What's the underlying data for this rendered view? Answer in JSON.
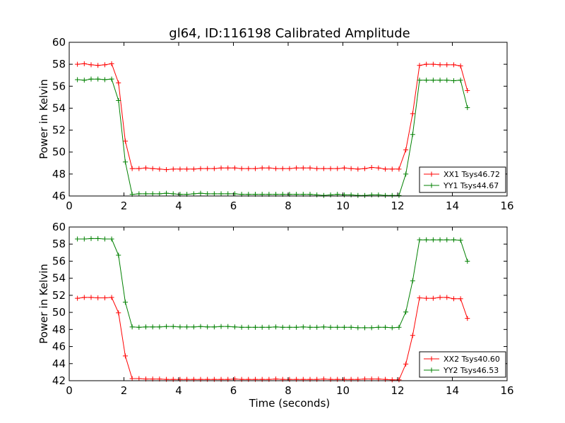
{
  "chart_data": [
    {
      "type": "line",
      "title": "gl64, ID:116198 Calibrated Amplitude",
      "xlabel": "",
      "ylabel": "Power in Kelvin",
      "xlim": [
        0,
        16
      ],
      "ylim": [
        46,
        60
      ],
      "xticks": [
        0,
        2,
        4,
        6,
        8,
        10,
        12,
        14,
        16
      ],
      "yticks": [
        46,
        48,
        50,
        52,
        54,
        56,
        58,
        60
      ],
      "grid": false,
      "legend_position": "lower-right",
      "x": [
        0.3,
        0.55,
        0.8,
        1.05,
        1.3,
        1.55,
        1.8,
        2.05,
        2.3,
        2.55,
        2.8,
        3.05,
        3.3,
        3.55,
        3.8,
        4.05,
        4.3,
        4.55,
        4.8,
        5.05,
        5.3,
        5.55,
        5.8,
        6.05,
        6.3,
        6.55,
        6.8,
        7.05,
        7.3,
        7.55,
        7.8,
        8.05,
        8.3,
        8.55,
        8.8,
        9.05,
        9.3,
        9.55,
        9.8,
        10.05,
        10.3,
        10.55,
        10.8,
        11.05,
        11.3,
        11.55,
        11.8,
        12.05,
        12.3,
        12.55,
        12.8,
        13.05,
        13.3,
        13.55,
        13.8,
        14.05,
        14.3,
        14.55
      ],
      "series": [
        {
          "name": "XX1 Tsys46.72",
          "color": "#ff0000",
          "values": [
            58.0,
            58.05,
            57.95,
            57.9,
            57.95,
            58.05,
            56.3,
            51.0,
            48.5,
            48.5,
            48.55,
            48.5,
            48.45,
            48.4,
            48.45,
            48.45,
            48.45,
            48.45,
            48.5,
            48.5,
            48.5,
            48.55,
            48.55,
            48.55,
            48.5,
            48.5,
            48.5,
            48.55,
            48.55,
            48.5,
            48.5,
            48.5,
            48.55,
            48.55,
            48.55,
            48.5,
            48.5,
            48.5,
            48.5,
            48.55,
            48.5,
            48.45,
            48.5,
            48.6,
            48.55,
            48.45,
            48.45,
            48.45,
            50.2,
            53.5,
            57.9,
            58.0,
            58.0,
            57.95,
            57.95,
            57.95,
            57.85,
            55.6
          ]
        },
        {
          "name": "YY1 Tsys44.67",
          "color": "#008000",
          "values": [
            56.6,
            56.55,
            56.65,
            56.65,
            56.6,
            56.65,
            54.7,
            49.1,
            46.15,
            46.2,
            46.2,
            46.2,
            46.2,
            46.25,
            46.2,
            46.15,
            46.15,
            46.2,
            46.25,
            46.2,
            46.2,
            46.2,
            46.2,
            46.2,
            46.15,
            46.15,
            46.15,
            46.15,
            46.15,
            46.15,
            46.15,
            46.15,
            46.15,
            46.15,
            46.15,
            46.1,
            46.05,
            46.1,
            46.15,
            46.1,
            46.1,
            46.05,
            46.05,
            46.1,
            46.1,
            46.05,
            46.05,
            46.05,
            48.0,
            51.6,
            56.55,
            56.55,
            56.55,
            56.55,
            56.55,
            56.5,
            56.55,
            54.05
          ]
        }
      ]
    },
    {
      "type": "line",
      "title": "",
      "xlabel": "Time (seconds)",
      "ylabel": "Power in Kelvin",
      "xlim": [
        0,
        16
      ],
      "ylim": [
        42,
        60
      ],
      "xticks": [
        0,
        2,
        4,
        6,
        8,
        10,
        12,
        14,
        16
      ],
      "yticks": [
        42,
        44,
        46,
        48,
        50,
        52,
        54,
        56,
        58,
        60
      ],
      "grid": false,
      "legend_position": "lower-right",
      "x": [
        0.3,
        0.55,
        0.8,
        1.05,
        1.3,
        1.55,
        1.8,
        2.05,
        2.3,
        2.55,
        2.8,
        3.05,
        3.3,
        3.55,
        3.8,
        4.05,
        4.3,
        4.55,
        4.8,
        5.05,
        5.3,
        5.55,
        5.8,
        6.05,
        6.3,
        6.55,
        6.8,
        7.05,
        7.3,
        7.55,
        7.8,
        8.05,
        8.3,
        8.55,
        8.8,
        9.05,
        9.3,
        9.55,
        9.8,
        10.05,
        10.3,
        10.55,
        10.8,
        11.05,
        11.3,
        11.55,
        11.8,
        12.05,
        12.3,
        12.55,
        12.8,
        13.05,
        13.3,
        13.55,
        13.8,
        14.05,
        14.3,
        14.55
      ],
      "series": [
        {
          "name": "XX2 Tsys40.60",
          "color": "#ff0000",
          "values": [
            51.65,
            51.75,
            51.75,
            51.7,
            51.7,
            51.75,
            49.95,
            44.9,
            42.25,
            42.25,
            42.2,
            42.2,
            42.2,
            42.15,
            42.15,
            42.15,
            42.15,
            42.15,
            42.15,
            42.15,
            42.15,
            42.15,
            42.15,
            42.2,
            42.15,
            42.15,
            42.15,
            42.15,
            42.15,
            42.2,
            42.15,
            42.15,
            42.15,
            42.15,
            42.15,
            42.15,
            42.2,
            42.15,
            42.15,
            42.15,
            42.15,
            42.15,
            42.2,
            42.2,
            42.2,
            42.15,
            42.1,
            42.1,
            43.95,
            47.3,
            51.7,
            51.65,
            51.65,
            51.75,
            51.75,
            51.6,
            51.6,
            49.3
          ]
        },
        {
          "name": "YY2 Tsys46.53",
          "color": "#008000",
          "values": [
            58.6,
            58.6,
            58.65,
            58.65,
            58.6,
            58.6,
            56.7,
            51.2,
            48.3,
            48.25,
            48.3,
            48.3,
            48.3,
            48.35,
            48.35,
            48.3,
            48.3,
            48.3,
            48.35,
            48.3,
            48.3,
            48.35,
            48.35,
            48.3,
            48.25,
            48.25,
            48.25,
            48.25,
            48.25,
            48.3,
            48.25,
            48.25,
            48.25,
            48.3,
            48.25,
            48.25,
            48.3,
            48.25,
            48.25,
            48.25,
            48.25,
            48.2,
            48.2,
            48.2,
            48.25,
            48.25,
            48.2,
            48.25,
            50.05,
            53.7,
            58.5,
            58.5,
            58.5,
            58.5,
            58.5,
            58.5,
            58.45,
            56.0
          ]
        }
      ]
    }
  ]
}
